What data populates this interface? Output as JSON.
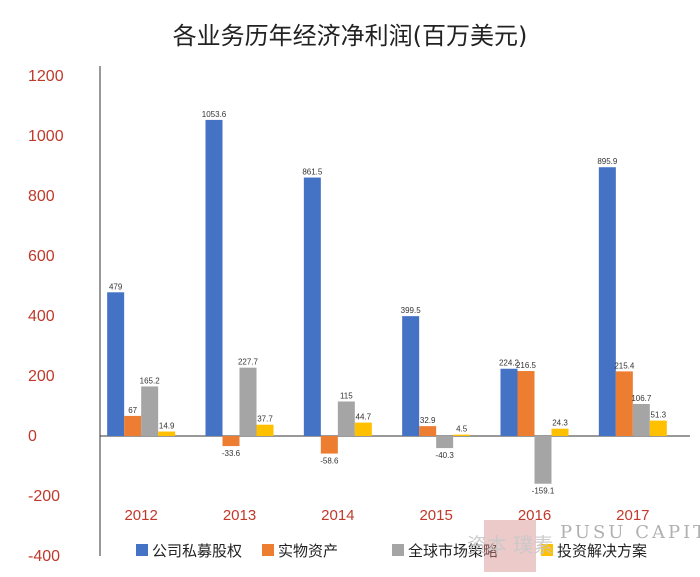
{
  "chart_data": {
    "type": "bar",
    "title": "各业务历年经济净利润(百万美元)",
    "categories": [
      "2012",
      "2013",
      "2014",
      "2015",
      "2016",
      "2017"
    ],
    "series": [
      {
        "name": "公司私募股权",
        "color": "#4472c4",
        "values": [
          479,
          1053.6,
          861.5,
          399.5,
          224.2,
          895.9
        ],
        "labels": [
          "479",
          "1053.6",
          "861.5",
          "399.5",
          "224.2",
          "895.9"
        ]
      },
      {
        "name": "实物资产",
        "color": "#ed7d31",
        "values": [
          67,
          -33.6,
          -58.6,
          32.9,
          216.5,
          215.4
        ],
        "labels": [
          "67",
          "-33.6",
          "-58.6",
          "32.9",
          "216.5",
          "215.4"
        ]
      },
      {
        "name": "全球市场策略",
        "color": "#a5a5a5",
        "values": [
          165.2,
          227.7,
          115,
          -40.3,
          -159.1,
          106.7
        ],
        "labels": [
          "165.2",
          "227.7",
          "115",
          "-40.3",
          "-159.1",
          "106.7"
        ]
      },
      {
        "name": "投资解决方案",
        "color": "#ffc000",
        "values": [
          14.9,
          37.7,
          44.7,
          4.5,
          24.3,
          51.3
        ],
        "labels": [
          "14.9",
          "37.7",
          "44.7",
          "4.5",
          "24.3",
          "51.3"
        ]
      }
    ],
    "yticks": [
      "-400",
      "-200",
      "0",
      "200",
      "400",
      "600",
      "800",
      "1000",
      "1200"
    ],
    "ylim": [
      -400,
      1200
    ],
    "xlabel": "",
    "ylabel": "",
    "grid": false,
    "legend_position": "bottom"
  },
  "watermark": {
    "brand": "PUSU CAPITAL",
    "chinese": "资本 璞素"
  }
}
